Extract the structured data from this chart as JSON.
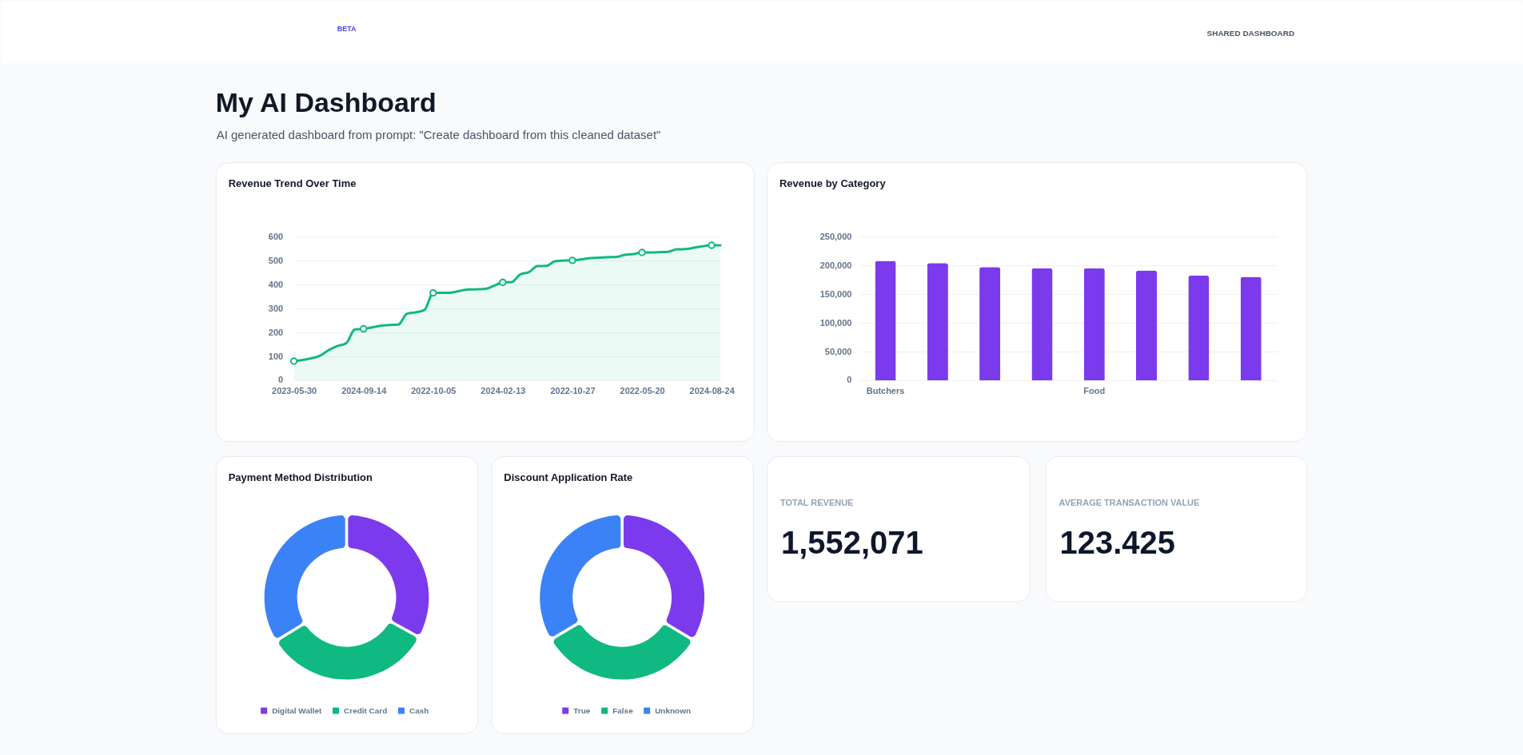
{
  "chart_data": [
    {
      "type": "other",
      "title": "My AI Dashboard",
      "subtitle": "AI generated dashboard from prompt: \"Create dashboard from this cleaned dataset\"",
      "annotations": [
        "BETA",
        "SHARED DASHBOARD"
      ]
    },
    {
      "type": "area",
      "title": "Revenue Trend Over Time",
      "categories": [
        "2023-05-30",
        null,
        null,
        null,
        null,
        null,
        null,
        null,
        "2024-09-14",
        null,
        null,
        null,
        null,
        null,
        null,
        null,
        "2022-10-05",
        null,
        null,
        null,
        null,
        null,
        null,
        null,
        "2024-02-13",
        null,
        null,
        null,
        null,
        null,
        null,
        null,
        "2022-10-27",
        null,
        null,
        null,
        null,
        null,
        null,
        null,
        "2022-05-20",
        null,
        null,
        null,
        null,
        null,
        null,
        null,
        "2024-08-24",
        null
      ],
      "series": [
        {
          "type": "area",
          "color": "#10b981",
          "values": [
            80,
            85,
            92,
            103,
            126,
            143,
            155,
            212,
            215,
            221,
            228,
            231,
            233,
            278,
            284,
            294,
            365,
            365,
            366,
            373,
            379,
            380,
            382,
            395,
            409,
            410,
            442,
            452,
            477,
            478,
            497,
            500,
            501,
            505,
            510,
            512,
            514,
            515,
            524,
            527,
            534,
            534,
            535,
            537,
            547,
            548,
            554,
            560,
            564,
            564
          ]
        },
        {
          "type": "scatter",
          "color": "#10b981",
          "marker": "circle",
          "values": [
            80,
            null,
            null,
            null,
            null,
            null,
            null,
            null,
            215,
            null,
            null,
            null,
            null,
            null,
            null,
            null,
            365,
            null,
            null,
            null,
            null,
            null,
            null,
            null,
            409,
            null,
            null,
            null,
            null,
            null,
            null,
            null,
            501,
            null,
            null,
            null,
            null,
            null,
            null,
            null,
            534,
            null,
            null,
            null,
            null,
            null,
            null,
            null,
            564,
            null
          ]
        }
      ],
      "ylim": [
        0,
        600
      ],
      "yticks": [
        0,
        100,
        200,
        300,
        400,
        500,
        600
      ],
      "grid": "y"
    },
    {
      "type": "bar",
      "title": "Revenue by Category",
      "categories": [
        "Butchers",
        null,
        null,
        null,
        "Food",
        null,
        null,
        null
      ],
      "values": [
        208000,
        204000,
        197000,
        195000,
        195000,
        191000,
        182000,
        180000
      ],
      "color": "#7c3aed",
      "ylim": [
        0,
        250000
      ],
      "yticks": [
        0,
        {
          "value": 50000,
          "label": "50,000"
        },
        {
          "value": 100000,
          "label": "100,000"
        },
        {
          "value": 150000,
          "label": "150,000"
        },
        {
          "value": 200000,
          "label": "200,000"
        },
        {
          "value": 250000,
          "label": "250,000"
        }
      ],
      "grid": "y"
    },
    {
      "type": "donut",
      "title": "Payment Method Distribution",
      "categories": [
        "Digital Wallet",
        "Credit Card",
        "Cash"
      ],
      "values": [
        33.0,
        33.2,
        33.8
      ],
      "colors": [
        "#7c3aed",
        "#10b981",
        "#3b82f6"
      ],
      "legend": "bottom"
    },
    {
      "type": "donut",
      "title": "Discount Application Rate",
      "categories": [
        "True",
        "False",
        "Unknown"
      ],
      "values": [
        33.6,
        32.9,
        33.5
      ],
      "colors": [
        "#7c3aed",
        "#10b981",
        "#3b82f6"
      ],
      "legend": "bottom"
    },
    {
      "type": "other",
      "title": "TOTAL REVENUE",
      "annotations": [
        "1,552,071"
      ]
    },
    {
      "type": "other",
      "title": "AVERAGE TRANSACTION VALUE",
      "annotations": [
        "123.425"
      ]
    }
  ]
}
